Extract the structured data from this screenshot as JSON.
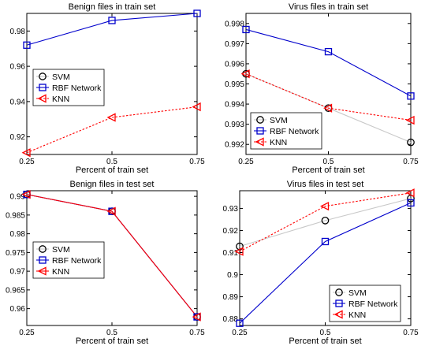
{
  "chart_data": [
    {
      "type": "line",
      "title": "Benign files in train set",
      "xlabel": "Percent of train set",
      "ylabel": "",
      "x": [
        0.25,
        0.5,
        0.75
      ],
      "xticks": [
        "0.25",
        "0.5",
        "0.75"
      ],
      "xlim": [
        0.25,
        0.75
      ],
      "ylim": [
        0.91,
        0.99
      ],
      "yticks": [
        "0.92",
        "0.94",
        "0.96",
        "0.98"
      ],
      "legend_position": "center-left",
      "series": [
        {
          "name": "SVM",
          "values": [
            0.972,
            0.986,
            0.99
          ],
          "color": "#000000",
          "marker": "circle",
          "line": "solid",
          "line_color": "#c8c8c8",
          "visible": false
        },
        {
          "name": "RBF Network",
          "values": [
            0.972,
            0.986,
            0.99
          ],
          "color": "#0000cc",
          "marker": "square",
          "line": "solid"
        },
        {
          "name": "KNN",
          "values": [
            0.911,
            0.931,
            0.937
          ],
          "color": "#ff0000",
          "marker": "triangle-left",
          "line": "dotted"
        }
      ]
    },
    {
      "type": "line",
      "title": "Virus files in train set",
      "xlabel": "Percent of train set",
      "ylabel": "",
      "x": [
        0.25,
        0.5,
        0.75
      ],
      "xticks": [
        "0.25",
        "0.5",
        "0.75"
      ],
      "xlim": [
        0.25,
        0.75
      ],
      "ylim": [
        0.9915,
        0.9985
      ],
      "yticks": [
        "0.992",
        "0.993",
        "0.994",
        "0.995",
        "0.996",
        "0.997",
        "0.998"
      ],
      "legend_position": "bottom-left",
      "series": [
        {
          "name": "SVM",
          "values": [
            0.9955,
            0.9938,
            0.9921
          ],
          "color": "#000000",
          "marker": "circle",
          "line": "solid",
          "line_color": "#c8c8c8"
        },
        {
          "name": "RBF Network",
          "values": [
            0.9977,
            0.9966,
            0.9944
          ],
          "color": "#0000cc",
          "marker": "square",
          "line": "solid"
        },
        {
          "name": "KNN",
          "values": [
            0.9955,
            0.9938,
            0.9932
          ],
          "color": "#ff0000",
          "marker": "triangle-left",
          "line": "dotted"
        }
      ]
    },
    {
      "type": "line",
      "title": "Benign files in test set",
      "xlabel": "Percent of train set",
      "ylabel": "",
      "x": [
        0.25,
        0.5,
        0.75
      ],
      "xticks": [
        "0.25",
        "0.5",
        "0.75"
      ],
      "xlim": [
        0.25,
        0.75
      ],
      "ylim": [
        0.9555,
        0.9915
      ],
      "yticks": [
        "0.96",
        "0.965",
        "0.97",
        "0.975",
        "0.98",
        "0.985",
        "0.99"
      ],
      "legend_position": "center-left",
      "series": [
        {
          "name": "SVM",
          "values": [
            0.9905,
            0.986,
            0.9578
          ],
          "color": "#000000",
          "marker": "circle",
          "line": "solid",
          "line_color": "#c8c8c8"
        },
        {
          "name": "RBF Network",
          "values": [
            0.9905,
            0.986,
            0.9578
          ],
          "color": "#0000cc",
          "marker": "square",
          "line": "solid"
        },
        {
          "name": "KNN",
          "values": [
            0.9905,
            0.986,
            0.9578
          ],
          "color": "#ff0000",
          "marker": "triangle-left",
          "line": "solid"
        }
      ]
    },
    {
      "type": "line",
      "title": "Virus files in test set",
      "xlabel": "Percent of train set",
      "ylabel": "",
      "x": [
        0.25,
        0.5,
        0.75
      ],
      "xticks": [
        "0.25",
        "0.5",
        "0.75"
      ],
      "xlim": [
        0.25,
        0.75
      ],
      "ylim": [
        0.877,
        0.938
      ],
      "yticks": [
        "0.88",
        "0.89",
        "0.9",
        "0.91",
        "0.92",
        "0.93"
      ],
      "legend_position": "bottom-right",
      "series": [
        {
          "name": "SVM",
          "values": [
            0.9128,
            0.9245,
            0.9345
          ],
          "color": "#000000",
          "marker": "circle",
          "line": "solid",
          "line_color": "#c8c8c8"
        },
        {
          "name": "RBF Network",
          "values": [
            0.878,
            0.915,
            0.9325
          ],
          "color": "#0000cc",
          "marker": "square",
          "line": "solid"
        },
        {
          "name": "KNN",
          "values": [
            0.9105,
            0.931,
            0.937
          ],
          "color": "#ff0000",
          "marker": "triangle-left",
          "line": "dotted"
        }
      ]
    }
  ]
}
